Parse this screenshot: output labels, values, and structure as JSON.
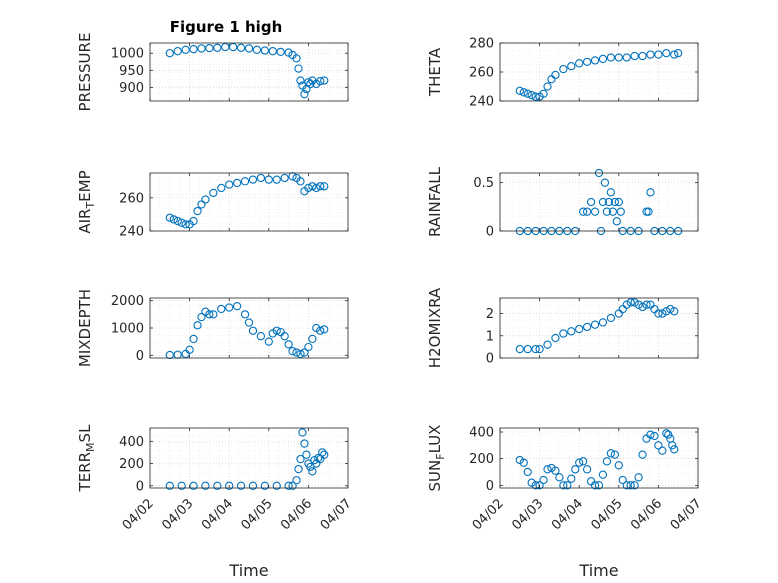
{
  "chart_data": [
    {
      "type": "scatter",
      "title": "Figure 1 high",
      "ylabel": "PRESSURE",
      "ylim": [
        860,
        1030
      ],
      "yticks": [
        900,
        950,
        1000
      ],
      "xlim": [
        0,
        5
      ],
      "xticks": [
        0,
        1,
        2,
        3,
        4,
        5
      ],
      "xtick_labels": [],
      "xlabel": "",
      "grid": true,
      "series_color": "#0072BD",
      "x": [
        0.5,
        0.7,
        0.9,
        1.1,
        1.3,
        1.5,
        1.7,
        1.9,
        2.1,
        2.3,
        2.5,
        2.7,
        2.9,
        3.1,
        3.3,
        3.5,
        3.6,
        3.7,
        3.75,
        3.8,
        3.85,
        3.9,
        3.95,
        4.0,
        4.05,
        4.1,
        4.2,
        4.3,
        4.4
      ],
      "values": [
        1000,
        1006,
        1010,
        1012,
        1014,
        1015,
        1016,
        1018,
        1018,
        1016,
        1014,
        1010,
        1008,
        1006,
        1004,
        1002,
        995,
        985,
        955,
        920,
        905,
        880,
        895,
        915,
        910,
        920,
        910,
        918,
        920
      ]
    },
    {
      "type": "scatter",
      "title": "",
      "ylabel": "THETA",
      "ylim": [
        240,
        280
      ],
      "yticks": [
        240,
        260,
        280
      ],
      "xlim": [
        0,
        5
      ],
      "xticks": [
        0,
        1,
        2,
        3,
        4,
        5
      ],
      "xtick_labels": [],
      "xlabel": "",
      "grid": true,
      "series_color": "#0072BD",
      "x": [
        0.5,
        0.6,
        0.7,
        0.8,
        0.9,
        1.0,
        1.1,
        1.2,
        1.3,
        1.4,
        1.6,
        1.8,
        2.0,
        2.2,
        2.4,
        2.6,
        2.8,
        3.0,
        3.2,
        3.4,
        3.6,
        3.8,
        4.0,
        4.2,
        4.4,
        4.5
      ],
      "values": [
        247,
        246,
        245,
        244,
        243,
        243,
        245,
        250,
        255,
        258,
        262,
        264,
        266,
        267,
        268,
        269,
        270,
        270,
        270,
        271,
        271,
        272,
        272,
        273,
        272,
        273
      ]
    },
    {
      "type": "scatter",
      "title": "",
      "ylabel": "AIR_TEMP",
      "ylim": [
        240,
        275
      ],
      "yticks": [
        240,
        260
      ],
      "xlim": [
        0,
        5
      ],
      "xticks": [
        0,
        1,
        2,
        3,
        4,
        5
      ],
      "xtick_labels": [],
      "xlabel": "",
      "grid": true,
      "series_color": "#0072BD",
      "x": [
        0.5,
        0.6,
        0.7,
        0.8,
        0.9,
        1.0,
        1.1,
        1.2,
        1.3,
        1.4,
        1.6,
        1.8,
        2.0,
        2.2,
        2.4,
        2.6,
        2.8,
        3.0,
        3.2,
        3.4,
        3.6,
        3.7,
        3.8,
        3.9,
        4.0,
        4.1,
        4.2,
        4.3,
        4.4
      ],
      "values": [
        248,
        247,
        246,
        245,
        244,
        244,
        246,
        252,
        256,
        259,
        263,
        266,
        268,
        269,
        270,
        271,
        272,
        271,
        271,
        272,
        273,
        272,
        270,
        264,
        266,
        267,
        266,
        267,
        267
      ]
    },
    {
      "type": "scatter",
      "title": "",
      "ylabel": "RAINFALL",
      "ylim": [
        0,
        0.6
      ],
      "yticks": [
        0,
        0.5
      ],
      "xlim": [
        0,
        5
      ],
      "xticks": [
        0,
        1,
        2,
        3,
        4,
        5
      ],
      "xtick_labels": [],
      "xlabel": "",
      "grid": true,
      "series_color": "#0072BD",
      "x": [
        0.5,
        0.7,
        0.9,
        1.1,
        1.3,
        1.5,
        1.7,
        1.9,
        2.1,
        2.2,
        2.3,
        2.4,
        2.5,
        2.55,
        2.6,
        2.65,
        2.7,
        2.75,
        2.8,
        2.85,
        2.9,
        2.95,
        3.0,
        3.05,
        3.1,
        3.3,
        3.5,
        3.7,
        3.75,
        3.8,
        3.9,
        4.1,
        4.3,
        4.5
      ],
      "values": [
        0,
        0,
        0,
        0,
        0,
        0,
        0,
        0,
        0.2,
        0.2,
        0.3,
        0.2,
        0.6,
        0,
        0.3,
        0.5,
        0.2,
        0.3,
        0.4,
        0.2,
        0.3,
        0.1,
        0.3,
        0.2,
        0,
        0,
        0,
        0.2,
        0.2,
        0.4,
        0,
        0,
        0,
        0
      ]
    },
    {
      "type": "scatter",
      "title": "",
      "ylabel": "MIXDEPTH",
      "ylim": [
        -100,
        2100
      ],
      "yticks": [
        0,
        1000,
        2000
      ],
      "xlim": [
        0,
        5
      ],
      "xticks": [
        0,
        1,
        2,
        3,
        4,
        5
      ],
      "xtick_labels": [],
      "xlabel": "",
      "grid": true,
      "series_color": "#0072BD",
      "x": [
        0.5,
        0.7,
        0.9,
        1.0,
        1.1,
        1.2,
        1.3,
        1.4,
        1.5,
        1.6,
        1.8,
        2.0,
        2.2,
        2.4,
        2.5,
        2.6,
        2.8,
        3.0,
        3.1,
        3.2,
        3.3,
        3.4,
        3.5,
        3.6,
        3.7,
        3.8,
        3.9,
        4.0,
        4.1,
        4.2,
        4.3,
        4.4
      ],
      "values": [
        10,
        20,
        50,
        200,
        600,
        1100,
        1400,
        1600,
        1500,
        1500,
        1700,
        1750,
        1800,
        1500,
        1200,
        900,
        700,
        500,
        800,
        900,
        850,
        700,
        400,
        150,
        100,
        50,
        100,
        300,
        600,
        1000,
        900,
        950
      ]
    },
    {
      "type": "scatter",
      "title": "",
      "ylabel": "H2OMIXRA",
      "ylim": [
        0,
        2.7
      ],
      "yticks": [
        0,
        1,
        2
      ],
      "xlim": [
        0,
        5
      ],
      "xticks": [
        0,
        1,
        2,
        3,
        4,
        5
      ],
      "xtick_labels": [],
      "xlabel": "",
      "grid": true,
      "series_color": "#0072BD",
      "x": [
        0.5,
        0.7,
        0.9,
        1.0,
        1.2,
        1.4,
        1.6,
        1.8,
        2.0,
        2.2,
        2.4,
        2.6,
        2.8,
        3.0,
        3.1,
        3.2,
        3.3,
        3.4,
        3.5,
        3.6,
        3.7,
        3.8,
        3.9,
        4.0,
        4.1,
        4.2,
        4.3,
        4.4
      ],
      "values": [
        0.4,
        0.4,
        0.4,
        0.4,
        0.6,
        0.9,
        1.1,
        1.2,
        1.3,
        1.4,
        1.5,
        1.6,
        1.8,
        2.0,
        2.2,
        2.4,
        2.5,
        2.5,
        2.4,
        2.3,
        2.4,
        2.4,
        2.2,
        2.0,
        2.0,
        2.1,
        2.2,
        2.1
      ]
    },
    {
      "type": "scatter",
      "title": "",
      "ylabel": "TERR_MSL",
      "ylim": [
        -20,
        520
      ],
      "yticks": [
        0,
        200,
        400
      ],
      "xlim": [
        0,
        5
      ],
      "xticks": [
        0,
        1,
        2,
        3,
        4,
        5
      ],
      "xtick_labels": [
        "04/02",
        "04/03",
        "04/04",
        "04/05",
        "04/06",
        "04/07"
      ],
      "xlabel": "Time",
      "grid": true,
      "series_color": "#0072BD",
      "x": [
        0.5,
        0.8,
        1.1,
        1.4,
        1.7,
        2.0,
        2.3,
        2.6,
        2.9,
        3.2,
        3.5,
        3.6,
        3.7,
        3.75,
        3.8,
        3.85,
        3.9,
        3.95,
        4.0,
        4.05,
        4.1,
        4.15,
        4.2,
        4.25,
        4.3,
        4.35,
        4.4
      ],
      "values": [
        0,
        0,
        0,
        0,
        0,
        0,
        0,
        0,
        0,
        0,
        0,
        0,
        50,
        150,
        240,
        480,
        380,
        280,
        200,
        170,
        130,
        230,
        200,
        250,
        240,
        300,
        280
      ]
    },
    {
      "type": "scatter",
      "title": "",
      "ylabel": "SUN_FLUX",
      "ylim": [
        -20,
        430
      ],
      "yticks": [
        0,
        200,
        400
      ],
      "xlim": [
        0,
        5
      ],
      "xticks": [
        0,
        1,
        2,
        3,
        4,
        5
      ],
      "xtick_labels": [
        "04/02",
        "04/03",
        "04/04",
        "04/05",
        "04/06",
        "04/07"
      ],
      "xlabel": "Time",
      "grid": true,
      "series_color": "#0072BD",
      "x": [
        0.5,
        0.6,
        0.7,
        0.8,
        0.9,
        1.0,
        1.1,
        1.2,
        1.3,
        1.4,
        1.5,
        1.6,
        1.7,
        1.8,
        1.9,
        2.0,
        2.1,
        2.2,
        2.3,
        2.4,
        2.5,
        2.6,
        2.7,
        2.8,
        2.9,
        3.0,
        3.1,
        3.2,
        3.3,
        3.4,
        3.5,
        3.6,
        3.7,
        3.8,
        3.9,
        4.0,
        4.1,
        4.2,
        4.25,
        4.3,
        4.35,
        4.4
      ],
      "values": [
        190,
        170,
        100,
        20,
        0,
        0,
        40,
        120,
        130,
        110,
        60,
        0,
        0,
        50,
        120,
        170,
        180,
        120,
        30,
        0,
        0,
        80,
        180,
        240,
        230,
        150,
        40,
        0,
        0,
        0,
        60,
        230,
        350,
        380,
        370,
        300,
        260,
        390,
        380,
        350,
        300,
        270
      ]
    }
  ],
  "ylabel_parts": [
    {
      "main": "PRESSURE",
      "sub": ""
    },
    {
      "main": "THETA",
      "sub": ""
    },
    {
      "main": "AIR",
      "sub": "T",
      "rest": "EMP"
    },
    {
      "main": "RAINFALL",
      "sub": ""
    },
    {
      "main": "MIXDEPTH",
      "sub": ""
    },
    {
      "main": "H2OMIXRA",
      "sub": ""
    },
    {
      "main": "TERR",
      "sub": "M",
      "rest": "SL"
    },
    {
      "main": "SUN",
      "sub": "F",
      "rest": "LUX"
    }
  ]
}
